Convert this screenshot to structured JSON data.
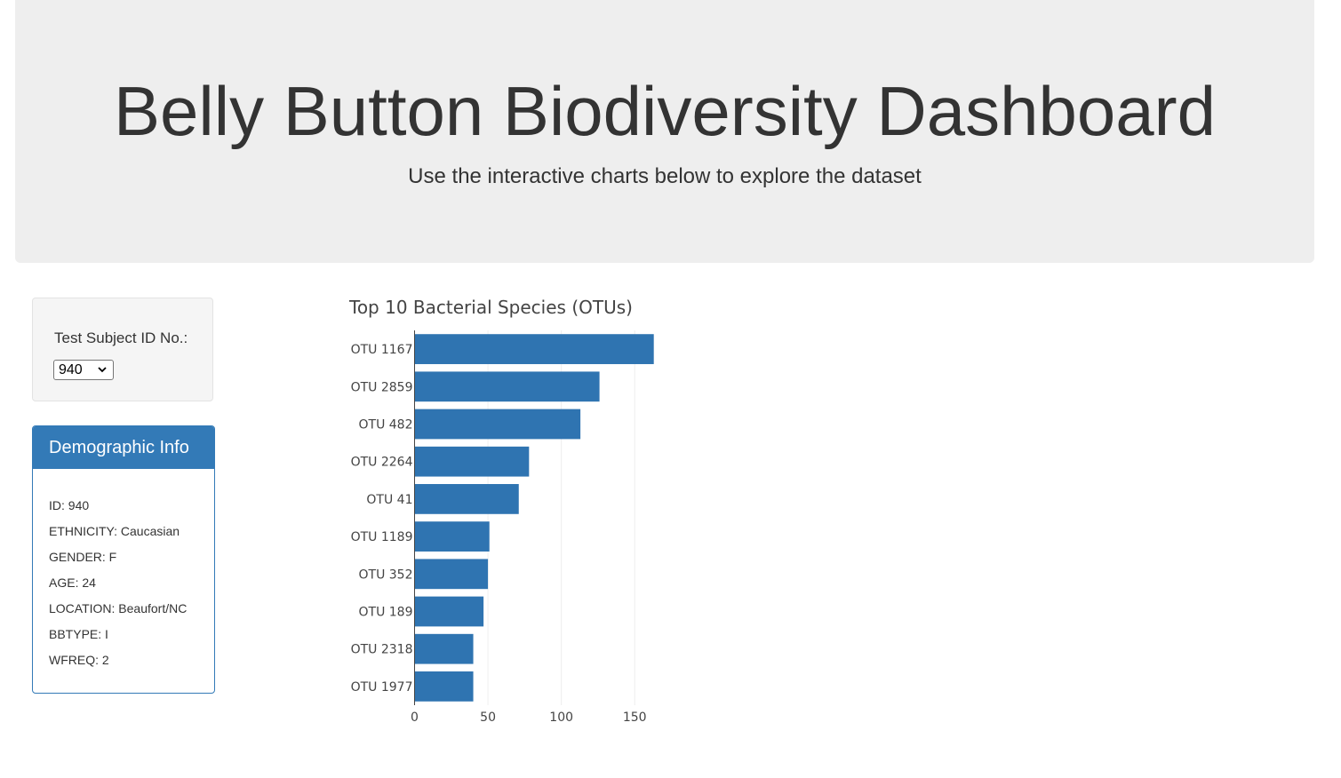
{
  "header": {
    "title": "Belly Button Biodiversity Dashboard",
    "subtitle": "Use the interactive charts below to explore the dataset"
  },
  "selector": {
    "label": "Test Subject ID No.:",
    "selected": "940"
  },
  "demographics": {
    "heading": "Demographic Info",
    "rows": [
      "ID: 940",
      "ETHNICITY: Caucasian",
      "GENDER: F",
      "AGE: 24",
      "LOCATION: Beaufort/NC",
      "BBTYPE: I",
      "WFREQ: 2"
    ]
  },
  "colors": {
    "bar": "#2f74b1",
    "panel": "#337ab7",
    "jumbotron": "#eeeeee"
  },
  "chart_data": {
    "type": "bar",
    "orientation": "horizontal",
    "title": "Top 10 Bacterial Species (OTUs)",
    "categories": [
      "OTU 1167",
      "OTU 2859",
      "OTU 482",
      "OTU 2264",
      "OTU 41",
      "OTU 1189",
      "OTU 352",
      "OTU 189",
      "OTU 2318",
      "OTU 1977"
    ],
    "values": [
      163,
      126,
      113,
      78,
      71,
      51,
      50,
      47,
      40,
      40
    ],
    "xlim": [
      0,
      165
    ],
    "xticks": [
      0,
      50,
      100,
      150
    ],
    "grid": true,
    "legend": "none"
  }
}
